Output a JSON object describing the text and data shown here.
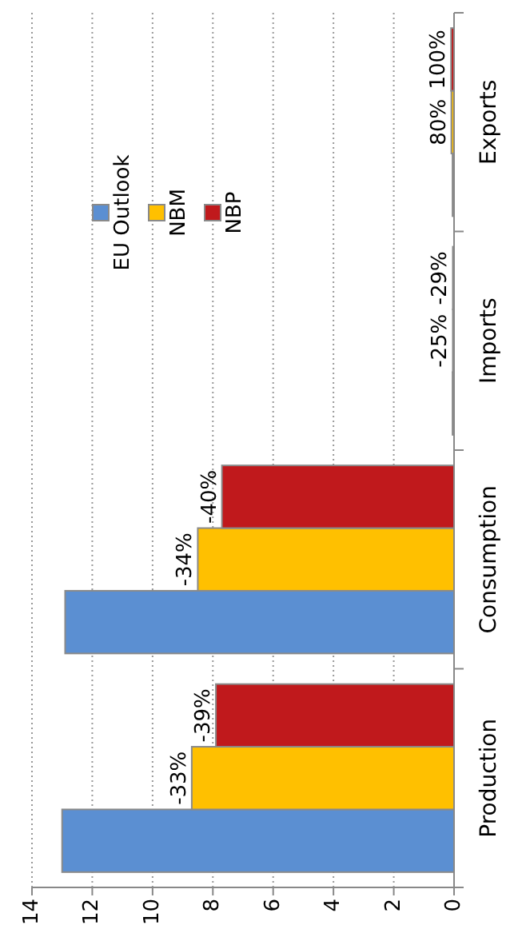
{
  "chart_data": {
    "type": "bar",
    "orientation": "horizontal",
    "categories": [
      "Exports",
      "Imports",
      "Consumption",
      "Production"
    ],
    "series": [
      {
        "name": "EU Outlook",
        "color": "#5b8fd2",
        "values": [
          0.05,
          0.05,
          12.9,
          13.0
        ]
      },
      {
        "name": "NBM",
        "color": "#ffc000",
        "values": [
          0.09,
          0.04,
          8.5,
          8.7
        ]
      },
      {
        "name": "NBP",
        "color": "#c0191c",
        "values": [
          0.1,
          0.04,
          7.7,
          7.9
        ]
      }
    ],
    "annotations": [
      "-33%",
      "-39%",
      "-34%",
      "-40%",
      "-25%",
      "-29%",
      "80%",
      "100%"
    ],
    "xlim": [
      14,
      0
    ],
    "xticks": [
      14,
      12,
      10,
      8,
      6,
      4,
      2,
      0
    ],
    "grid": "x",
    "legend": "top left"
  }
}
